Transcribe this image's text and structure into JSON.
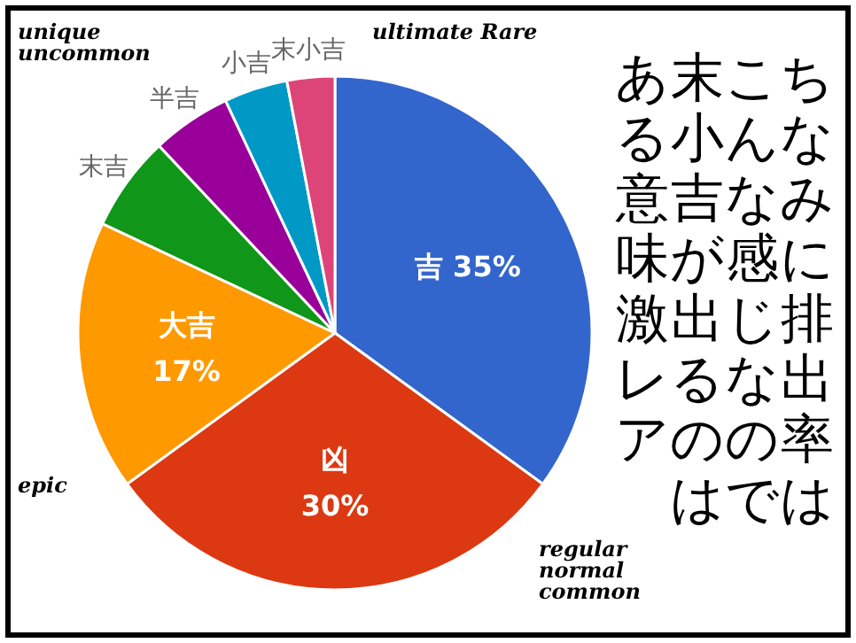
{
  "chart_data": {
    "type": "pie",
    "categories": [
      "吉",
      "凶",
      "大吉",
      "末吉",
      "半吉",
      "小吉",
      "末小吉"
    ],
    "values": [
      35,
      30,
      17,
      6,
      5,
      4,
      3
    ],
    "colors": [
      "#3366cc",
      "#dc3912",
      "#ff9900",
      "#109618",
      "#990099",
      "#0099c6",
      "#dd4477"
    ],
    "value_labels": [
      "35%",
      "30%",
      "17%",
      null,
      null,
      null,
      null
    ],
    "annotations": [
      "unique\nuncommon",
      "ultimate Rare",
      "epic",
      "regular\nnormal\ncommon",
      "ちなみに排出率は",
      "こんな感じなので",
      "末小吉が出るのは",
      "ある意味激レア"
    ]
  }
}
